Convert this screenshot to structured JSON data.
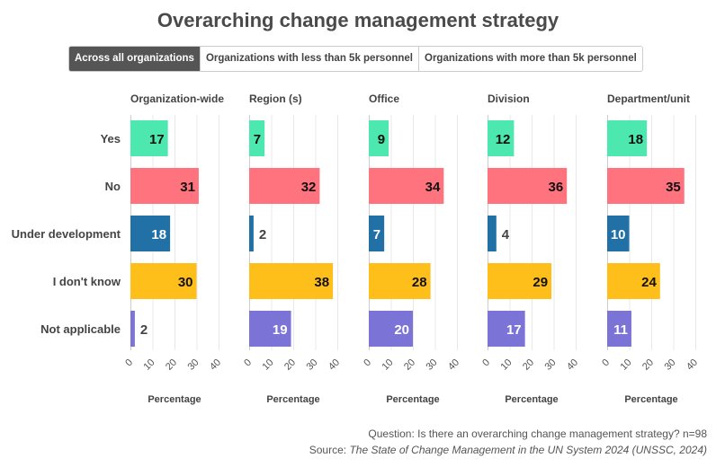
{
  "title": "Overarching change management strategy",
  "tabs": [
    {
      "label": "Across all organizations",
      "active": true
    },
    {
      "label": "Organizations with less than 5k personnel",
      "active": false
    },
    {
      "label": "Organizations with more than 5k personnel",
      "active": false
    }
  ],
  "note": {
    "question": "Question: Is there an overarching change management strategy? n=98",
    "source_prefix": "Source: ",
    "source_title": "The State of Change Management in the UN System 2024 (UNSSC, 2024)"
  },
  "chart_data": {
    "type": "bar",
    "orientation": "horizontal",
    "categories": [
      "Yes",
      "No",
      "Under development",
      "I don't know",
      "Not applicable"
    ],
    "category_colors": [
      "#4de8b0",
      "#ff737e",
      "#2171a7",
      "#ffbf1a",
      "#7b73d6"
    ],
    "panels": [
      {
        "name": "Organization-wide",
        "values": [
          17,
          31,
          18,
          30,
          2
        ]
      },
      {
        "name": "Region (s)",
        "values": [
          7,
          32,
          2,
          38,
          19
        ]
      },
      {
        "name": "Office",
        "values": [
          9,
          34,
          7,
          28,
          20
        ]
      },
      {
        "name": "Division",
        "values": [
          12,
          36,
          4,
          29,
          17
        ]
      },
      {
        "name": "Department/unit",
        "values": [
          18,
          35,
          10,
          24,
          11
        ]
      }
    ],
    "xlabel": "Percentage",
    "xlim": [
      0,
      40
    ],
    "xticks": [
      0,
      10,
      20,
      30,
      40
    ],
    "grid": true,
    "legend": "none"
  }
}
